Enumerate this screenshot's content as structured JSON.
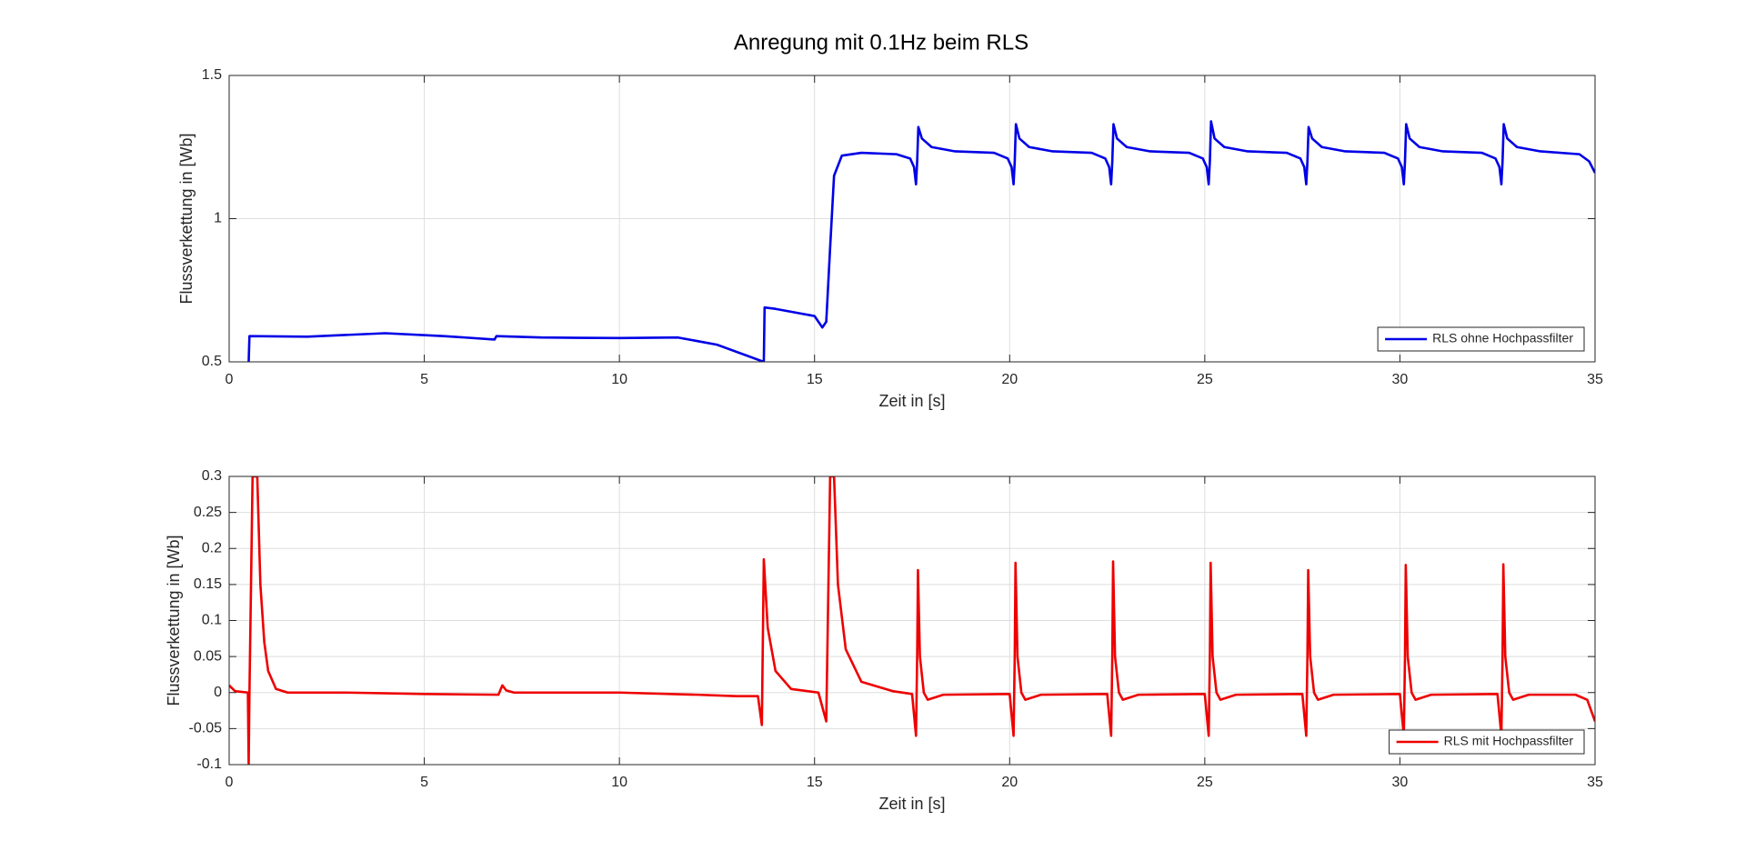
{
  "title": "Anregung mit 0.1Hz beim RLS",
  "chart_data": [
    {
      "type": "line",
      "xlabel": "Zeit in [s]",
      "ylabel": "Flussverkettung in [Wb]",
      "x": [
        0.5,
        0.52,
        2,
        4,
        5.5,
        6.8,
        6.85,
        8,
        10,
        11.5,
        12.5,
        13.7,
        13.72,
        14,
        15,
        15.2,
        15.3,
        15.4,
        15.5,
        15.7,
        16.2,
        17.1,
        17.45,
        17.55,
        17.6,
        17.63,
        17.66,
        17.75,
        18,
        18.6,
        19.6,
        19.95,
        20.05,
        20.1,
        20.13,
        20.16,
        20.25,
        20.5,
        21.1,
        22.1,
        22.45,
        22.55,
        22.6,
        22.63,
        22.66,
        22.75,
        23,
        23.6,
        24.6,
        24.95,
        25.05,
        25.1,
        25.13,
        25.16,
        25.25,
        25.5,
        26.1,
        27.1,
        27.45,
        27.55,
        27.6,
        27.63,
        27.66,
        27.75,
        28,
        28.6,
        29.6,
        29.95,
        30.05,
        30.1,
        30.13,
        30.16,
        30.25,
        30.5,
        31.1,
        32.1,
        32.45,
        32.55,
        32.6,
        32.63,
        32.66,
        32.75,
        33,
        33.6,
        34.6,
        34.85,
        35
      ],
      "series": [
        {
          "name": "RLS ohne Hochpassfilter",
          "color": "#0000e6",
          "values": [
            0.5,
            0.59,
            0.588,
            0.6,
            0.59,
            0.578,
            0.59,
            0.585,
            0.583,
            0.585,
            0.56,
            0.5,
            0.69,
            0.685,
            0.66,
            0.62,
            0.64,
            0.9,
            1.15,
            1.22,
            1.23,
            1.225,
            1.21,
            1.18,
            1.12,
            1.2,
            1.32,
            1.28,
            1.25,
            1.235,
            1.23,
            1.21,
            1.18,
            1.12,
            1.2,
            1.33,
            1.28,
            1.25,
            1.235,
            1.23,
            1.21,
            1.18,
            1.12,
            1.2,
            1.33,
            1.28,
            1.25,
            1.235,
            1.23,
            1.21,
            1.18,
            1.12,
            1.2,
            1.34,
            1.28,
            1.25,
            1.235,
            1.23,
            1.21,
            1.18,
            1.12,
            1.2,
            1.32,
            1.28,
            1.25,
            1.235,
            1.23,
            1.21,
            1.18,
            1.12,
            1.2,
            1.33,
            1.28,
            1.25,
            1.235,
            1.23,
            1.21,
            1.18,
            1.12,
            1.2,
            1.33,
            1.28,
            1.25,
            1.235,
            1.225,
            1.2,
            1.16
          ]
        }
      ],
      "xlim": [
        0,
        35
      ],
      "ylim": [
        0.5,
        1.5
      ],
      "xticks": [
        0,
        5,
        10,
        15,
        20,
        25,
        30,
        35
      ],
      "yticks": [
        0.5,
        1,
        1.5
      ],
      "grid": true,
      "legend": "southeast"
    },
    {
      "type": "line",
      "xlabel": "Zeit in [s]",
      "ylabel": "Flussverkettung in [Wb]",
      "x": [
        0,
        0.15,
        0.48,
        0.5,
        0.52,
        0.6,
        0.72,
        0.8,
        0.9,
        1,
        1.2,
        1.5,
        3,
        5,
        6.9,
        7,
        7.1,
        7.3,
        10,
        12,
        13,
        13.55,
        13.65,
        13.7,
        13.8,
        14,
        14.4,
        15.1,
        15.3,
        15.4,
        15.5,
        15.6,
        15.8,
        16.2,
        17,
        17.5,
        17.6,
        17.63,
        17.65,
        17.7,
        17.8,
        17.9,
        18.3,
        20,
        20.1,
        20.13,
        20.15,
        20.2,
        20.3,
        20.4,
        20.8,
        22.5,
        22.6,
        22.63,
        22.65,
        22.7,
        22.8,
        22.9,
        23.3,
        25,
        25.1,
        25.13,
        25.15,
        25.2,
        25.3,
        25.4,
        25.8,
        27.5,
        27.6,
        27.63,
        27.65,
        27.7,
        27.8,
        27.9,
        28.3,
        30,
        30.1,
        30.13,
        30.15,
        30.2,
        30.3,
        30.4,
        30.8,
        32.5,
        32.6,
        32.63,
        32.65,
        32.7,
        32.8,
        32.9,
        33.3,
        34.5,
        34.8,
        35
      ],
      "series": [
        {
          "name": "RLS mit Hochpassfilter",
          "color": "#ee0000",
          "values": [
            0.01,
            0.002,
            0,
            -0.1,
            0,
            0.3,
            0.3,
            0.15,
            0.07,
            0.03,
            0.005,
            0,
            0,
            -0.002,
            -0.003,
            0.01,
            0.003,
            0,
            0,
            -0.003,
            -0.005,
            -0.005,
            -0.045,
            0.185,
            0.09,
            0.03,
            0.005,
            0,
            -0.04,
            0.3,
            0.3,
            0.15,
            0.06,
            0.015,
            0.002,
            -0.002,
            -0.06,
            0.05,
            0.17,
            0.05,
            0,
            -0.01,
            -0.003,
            -0.002,
            -0.06,
            0.05,
            0.18,
            0.05,
            0,
            -0.01,
            -0.003,
            -0.002,
            -0.06,
            0.05,
            0.182,
            0.05,
            0,
            -0.01,
            -0.003,
            -0.002,
            -0.06,
            0.05,
            0.18,
            0.05,
            0,
            -0.01,
            -0.003,
            -0.002,
            -0.06,
            0.05,
            0.17,
            0.05,
            0,
            -0.01,
            -0.003,
            -0.002,
            -0.06,
            0.05,
            0.177,
            0.05,
            0,
            -0.01,
            -0.003,
            -0.002,
            -0.06,
            0.05,
            0.178,
            0.05,
            0,
            -0.01,
            -0.003,
            -0.003,
            -0.01,
            -0.04
          ]
        }
      ],
      "xlim": [
        0,
        35
      ],
      "ylim": [
        -0.1,
        0.3
      ],
      "xticks": [
        0,
        5,
        10,
        15,
        20,
        25,
        30,
        35
      ],
      "yticks": [
        -0.1,
        -0.05,
        0,
        0.05,
        0.1,
        0.15,
        0.2,
        0.25,
        0.3
      ],
      "grid": true,
      "legend": "southeast"
    }
  ]
}
